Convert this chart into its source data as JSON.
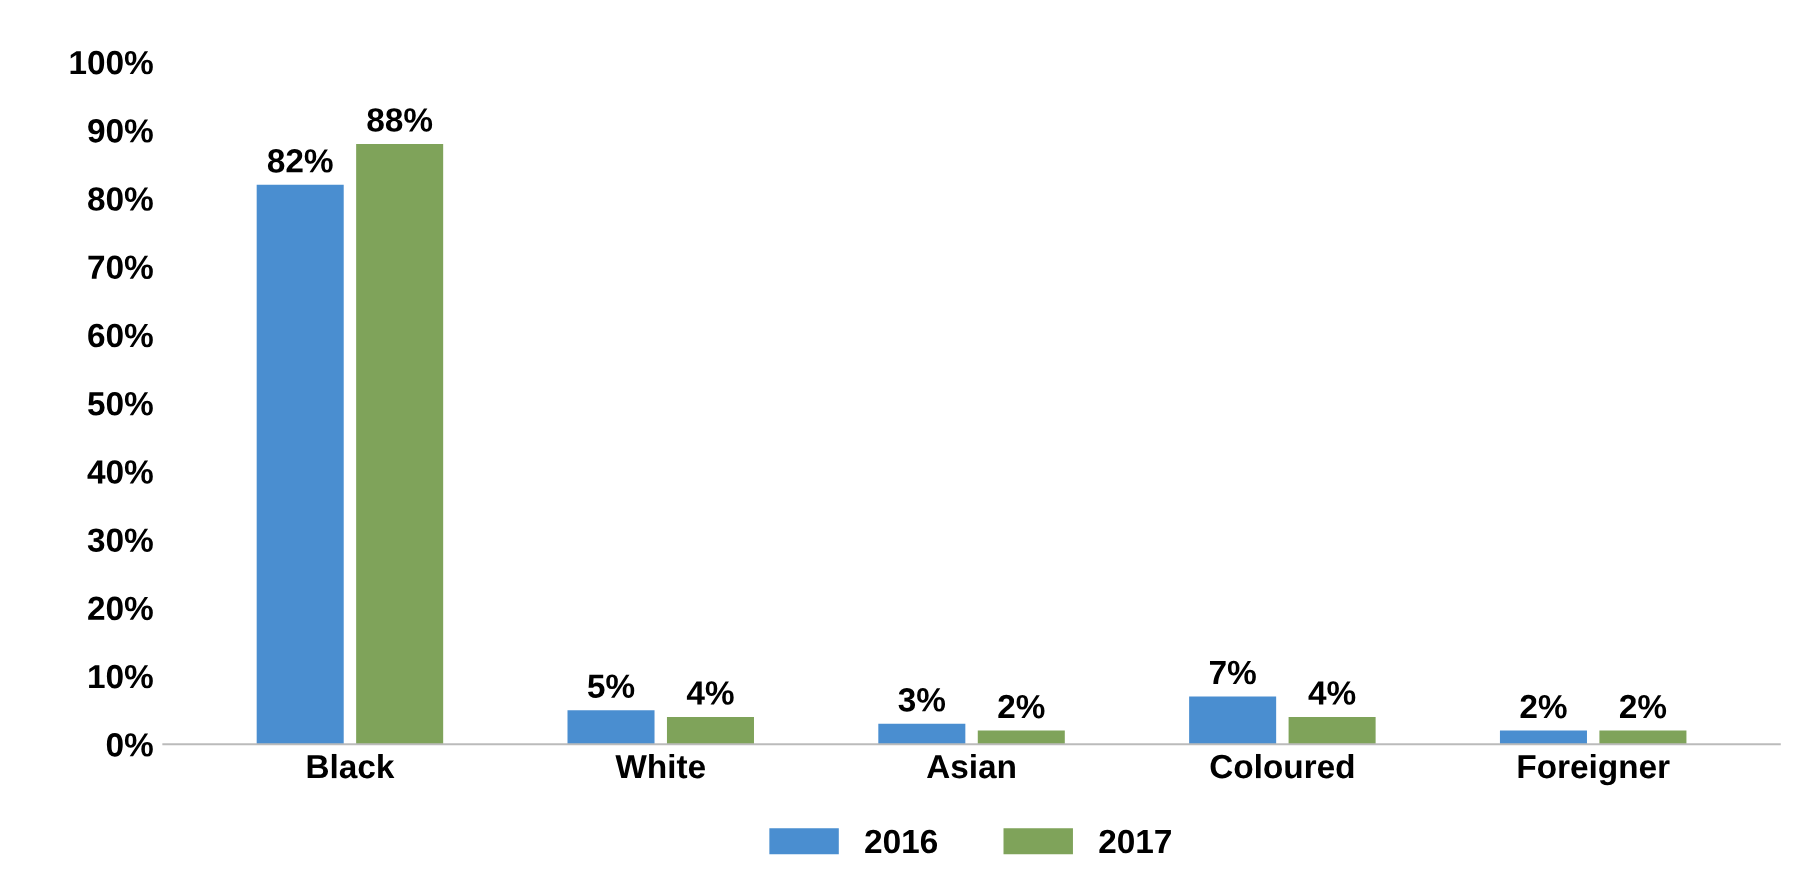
{
  "chart_data": {
    "type": "bar",
    "categories": [
      "Black",
      "White",
      "Asian",
      "Coloured",
      "Foreigner"
    ],
    "series": [
      {
        "name": "2016",
        "color": "#4a8ed0",
        "values": [
          82,
          5,
          3,
          7,
          2
        ],
        "value_labels": [
          "82%",
          "5%",
          "3%",
          "7%",
          "2%"
        ]
      },
      {
        "name": "2017",
        "color": "#7fa35a",
        "values": [
          88,
          4,
          2,
          4,
          2
        ],
        "value_labels": [
          "88%",
          "4%",
          "2%",
          "4%",
          "2%"
        ]
      }
    ],
    "ylim": [
      0,
      100
    ],
    "yticks": [
      {
        "value": 0,
        "label": "0%"
      },
      {
        "value": 10,
        "label": "10%"
      },
      {
        "value": 20,
        "label": "20%"
      },
      {
        "value": 30,
        "label": "30%"
      },
      {
        "value": 40,
        "label": "40%"
      },
      {
        "value": 50,
        "label": "50%"
      },
      {
        "value": 60,
        "label": "60%"
      },
      {
        "value": 70,
        "label": "70%"
      },
      {
        "value": 80,
        "label": "80%"
      },
      {
        "value": 90,
        "label": "90%"
      },
      {
        "value": 100,
        "label": "100%"
      }
    ],
    "grid": false,
    "legend": "bottom"
  }
}
